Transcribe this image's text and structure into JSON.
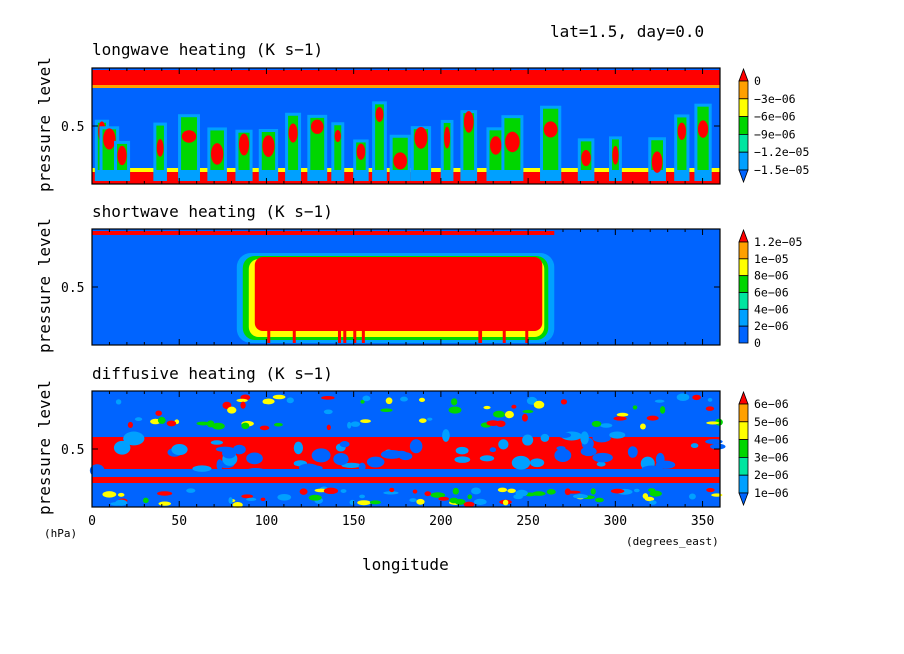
{
  "header": {
    "label": "lat=1.5, day=0.0"
  },
  "colors": {
    "red": "#ff0000",
    "orange": "#ffa000",
    "yellow": "#ffff00",
    "green": "#00d600",
    "teal": "#00e6a0",
    "cyan": "#00a0ff",
    "blue": "#0064ff",
    "axis": "#000000"
  },
  "chart_data": [
    {
      "type": "heatmap",
      "title": "longwave heating (K s−1)",
      "ylabel": "pressure level",
      "yticks": [
        "0.5"
      ],
      "xlim": [
        0,
        360
      ],
      "colorbar": {
        "extend": "both",
        "levels": [
          "0",
          "−3e−06",
          "−6e−06",
          "−9e−06",
          "−1.2e−05",
          "−1.5e−05"
        ],
        "colors": [
          "red",
          "orange",
          "yellow",
          "green",
          "teal",
          "cyan",
          "blue"
        ]
      }
    },
    {
      "type": "heatmap",
      "title": "shortwave heating (K s−1)",
      "ylabel": "pressure level",
      "yticks": [
        "0.5"
      ],
      "xlim": [
        0,
        360
      ],
      "colorbar": {
        "extend": "max",
        "levels": [
          "1.2e−05",
          "1e−05",
          "8e−06",
          "6e−06",
          "4e−06",
          "2e−06",
          "0"
        ],
        "colors": [
          "red",
          "orange",
          "yellow",
          "green",
          "teal",
          "cyan",
          "blue"
        ]
      }
    },
    {
      "type": "heatmap",
      "title": "diffusive heating (K s−1)",
      "ylabel": "pressure level",
      "yticks": [
        "0.5"
      ],
      "xlim": [
        0,
        360
      ],
      "xticks": [
        "0",
        "50",
        "100",
        "150",
        "200",
        "250",
        "300",
        "350"
      ],
      "xlabel": "longitude",
      "yunit": "(hPa)",
      "xunit": "(degrees_east)",
      "colorbar": {
        "extend": "both",
        "levels": [
          "6e−06",
          "5e−06",
          "4e−06",
          "3e−06",
          "2e−06",
          "1e−06"
        ],
        "colors": [
          "red",
          "orange",
          "yellow",
          "green",
          "teal",
          "cyan",
          "blue"
        ]
      }
    }
  ]
}
